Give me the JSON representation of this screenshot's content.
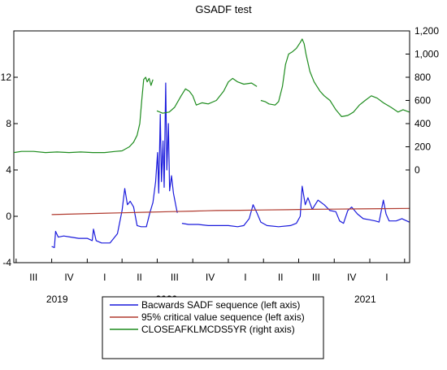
{
  "chart_data": {
    "type": "line",
    "title": "GSADF test",
    "xlabel": "",
    "x_range": [
      "2018-06-25",
      "2021-04-14"
    ],
    "left_axis": {
      "ticks": [
        "-4",
        "0",
        "4",
        "8",
        "12"
      ],
      "ylim": [
        -4,
        16
      ]
    },
    "right_axis": {
      "ticks": [
        "0",
        "200",
        "400",
        "600",
        "800",
        "1,000",
        "1,200"
      ],
      "ylim": [
        -800,
        1200
      ]
    },
    "x_quarter_labels": [
      {
        "label": "III",
        "date": "2018-08-15"
      },
      {
        "label": "IV",
        "date": "2018-11-15"
      },
      {
        "label": "I",
        "date": "2019-02-15"
      },
      {
        "label": "II",
        "date": "2019-05-16"
      },
      {
        "label": "III",
        "date": "2019-08-15"
      },
      {
        "label": "IV",
        "date": "2019-11-15"
      },
      {
        "label": "I",
        "date": "2020-02-14"
      },
      {
        "label": "II",
        "date": "2020-05-15"
      },
      {
        "label": "III",
        "date": "2020-08-15"
      },
      {
        "label": "IV",
        "date": "2020-11-15"
      },
      {
        "label": "I",
        "date": "2021-02-14"
      }
    ],
    "x_quarter_ticks": [
      "2018-07-01",
      "2018-10-01",
      "2019-01-01",
      "2019-04-01",
      "2019-07-01",
      "2019-10-01",
      "2020-01-01",
      "2020-04-01",
      "2020-07-01",
      "2020-10-01",
      "2021-01-01",
      "2021-04-01"
    ],
    "x_year_labels": [
      {
        "label": "2019",
        "date": "2018-10-15"
      },
      {
        "label": "2020",
        "date": "2019-07-25"
      },
      {
        "label": "2021",
        "date": "2020-12-20"
      }
    ],
    "series": [
      {
        "name": "Bacwards SADF sequence (left axis)",
        "axis": "left",
        "color": "#1a1adc",
        "points": [
          [
            "2018-10-01",
            -2.6
          ],
          [
            "2018-10-08",
            -2.7
          ],
          [
            "2018-10-11",
            -1.3
          ],
          [
            "2018-10-18",
            -1.8
          ],
          [
            "2018-11-01",
            -1.7
          ],
          [
            "2018-11-20",
            -1.8
          ],
          [
            "2018-12-10",
            -1.9
          ],
          [
            "2019-01-01",
            -1.9
          ],
          [
            "2019-01-14",
            -2.1
          ],
          [
            "2019-01-17",
            -1.1
          ],
          [
            "2019-01-24",
            -2.1
          ],
          [
            "2019-02-07",
            -2.3
          ],
          [
            "2019-03-01",
            -2.3
          ],
          [
            "2019-03-20",
            -1.5
          ],
          [
            "2019-04-01",
            0.5
          ],
          [
            "2019-04-08",
            2.4
          ],
          [
            "2019-04-15",
            1.0
          ],
          [
            "2019-04-22",
            1.3
          ],
          [
            "2019-05-01",
            0.8
          ],
          [
            "2019-05-10",
            -0.8
          ],
          [
            "2019-05-20",
            -0.9
          ],
          [
            "2019-06-03",
            -0.9
          ],
          [
            "2019-06-12",
            0.3
          ],
          [
            "2019-06-20",
            1.2
          ],
          [
            "2019-06-27",
            3.0
          ],
          [
            "2019-07-02",
            5.5
          ],
          [
            "2019-07-05",
            2.0
          ],
          [
            "2019-07-09",
            8.8
          ],
          [
            "2019-07-12",
            3.0
          ],
          [
            "2019-07-16",
            6.5
          ],
          [
            "2019-07-19",
            2.5
          ],
          [
            "2019-07-23",
            11.5
          ],
          [
            "2019-07-26",
            4.0
          ],
          [
            "2019-07-30",
            8.0
          ],
          [
            "2019-08-02",
            2.2
          ],
          [
            "2019-08-07",
            3.5
          ],
          [
            "2019-08-12",
            2.0
          ],
          [
            "2019-08-19",
            0.8
          ],
          [
            "2019-08-22",
            0.3
          ]
        ]
      },
      {
        "name": "Bacwards SADF sequence (left axis)",
        "axis": "left",
        "color": "#1a1adc",
        "points": [
          [
            "2019-09-03",
            -0.6
          ],
          [
            "2019-09-20",
            -0.7
          ],
          [
            "2019-10-15",
            -0.7
          ],
          [
            "2019-11-10",
            -0.8
          ],
          [
            "2019-12-05",
            -0.8
          ],
          [
            "2020-01-01",
            -0.8
          ],
          [
            "2020-01-25",
            -0.9
          ],
          [
            "2020-02-10",
            -0.8
          ],
          [
            "2020-02-24",
            -0.2
          ],
          [
            "2020-03-05",
            1.0
          ],
          [
            "2020-03-15",
            0.3
          ],
          [
            "2020-03-25",
            -0.5
          ],
          [
            "2020-04-10",
            -0.8
          ],
          [
            "2020-05-10",
            -0.9
          ],
          [
            "2020-06-10",
            -0.8
          ],
          [
            "2020-06-25",
            -0.6
          ],
          [
            "2020-07-05",
            0.0
          ],
          [
            "2020-07-10",
            2.6
          ],
          [
            "2020-07-18",
            1.0
          ],
          [
            "2020-07-25",
            1.6
          ],
          [
            "2020-08-05",
            0.6
          ],
          [
            "2020-08-20",
            1.4
          ],
          [
            "2020-09-05",
            1.0
          ],
          [
            "2020-09-20",
            0.5
          ],
          [
            "2020-10-05",
            0.4
          ],
          [
            "2020-10-15",
            -0.4
          ],
          [
            "2020-10-25",
            -0.6
          ],
          [
            "2020-11-05",
            0.5
          ],
          [
            "2020-11-15",
            0.8
          ],
          [
            "2020-11-30",
            0.2
          ],
          [
            "2020-12-15",
            -0.2
          ],
          [
            "2021-01-01",
            -0.3
          ],
          [
            "2021-01-15",
            -0.4
          ],
          [
            "2021-01-25",
            -0.5
          ],
          [
            "2021-02-05",
            1.4
          ],
          [
            "2021-02-12",
            0.2
          ],
          [
            "2021-02-20",
            -0.4
          ],
          [
            "2021-03-10",
            -0.4
          ],
          [
            "2021-03-25",
            -0.2
          ],
          [
            "2021-04-13",
            -0.5
          ]
        ]
      },
      {
        "name": "95% critical value sequence (left axis)",
        "axis": "left",
        "color": "#b03a2e",
        "points": [
          [
            "2018-10-01",
            0.15
          ],
          [
            "2018-12-01",
            0.2
          ],
          [
            "2019-02-01",
            0.25
          ],
          [
            "2019-04-01",
            0.3
          ],
          [
            "2019-06-01",
            0.35
          ],
          [
            "2019-08-01",
            0.4
          ],
          [
            "2019-10-01",
            0.45
          ],
          [
            "2019-12-01",
            0.5
          ],
          [
            "2020-02-01",
            0.52
          ],
          [
            "2020-04-01",
            0.55
          ],
          [
            "2020-06-01",
            0.57
          ],
          [
            "2020-08-01",
            0.6
          ],
          [
            "2020-10-01",
            0.62
          ],
          [
            "2020-12-01",
            0.64
          ],
          [
            "2021-02-01",
            0.66
          ],
          [
            "2021-04-13",
            0.68
          ]
        ]
      },
      {
        "name": "CLOSEAFKLMCDS5YR (right axis)",
        "axis": "right",
        "color": "#1e8c1e",
        "points": [
          [
            "2018-06-25",
            150
          ],
          [
            "2018-07-15",
            160
          ],
          [
            "2018-08-15",
            160
          ],
          [
            "2018-09-15",
            150
          ],
          [
            "2018-10-15",
            155
          ],
          [
            "2018-11-15",
            150
          ],
          [
            "2018-12-15",
            155
          ],
          [
            "2019-01-15",
            150
          ],
          [
            "2019-02-15",
            150
          ],
          [
            "2019-03-15",
            160
          ],
          [
            "2019-04-01",
            165
          ],
          [
            "2019-04-20",
            200
          ],
          [
            "2019-05-01",
            240
          ],
          [
            "2019-05-10",
            300
          ],
          [
            "2019-05-17",
            400
          ],
          [
            "2019-05-22",
            600
          ],
          [
            "2019-05-27",
            780
          ],
          [
            "2019-06-01",
            800
          ],
          [
            "2019-06-05",
            760
          ],
          [
            "2019-06-10",
            790
          ],
          [
            "2019-06-15",
            730
          ],
          [
            "2019-06-20",
            780
          ]
        ]
      },
      {
        "name": "CLOSEAFKLMCDS5YR (right axis)",
        "axis": "right",
        "color": "#1e8c1e",
        "points": [
          [
            "2019-06-30",
            510
          ],
          [
            "2019-07-15",
            490
          ],
          [
            "2019-08-01",
            500
          ],
          [
            "2019-08-15",
            540
          ],
          [
            "2019-09-01",
            640
          ],
          [
            "2019-09-12",
            700
          ],
          [
            "2019-09-22",
            680
          ],
          [
            "2019-10-01",
            640
          ],
          [
            "2019-10-10",
            560
          ],
          [
            "2019-10-25",
            580
          ],
          [
            "2019-11-10",
            570
          ],
          [
            "2019-12-01",
            600
          ],
          [
            "2019-12-20",
            680
          ],
          [
            "2020-01-01",
            760
          ],
          [
            "2020-01-12",
            790
          ],
          [
            "2020-01-25",
            760
          ],
          [
            "2020-02-10",
            740
          ],
          [
            "2020-03-01",
            750
          ],
          [
            "2020-03-15",
            720
          ]
        ]
      },
      {
        "name": "CLOSEAFKLMCDS5YR (right axis)",
        "axis": "right",
        "color": "#1e8c1e",
        "points": [
          [
            "2020-03-25",
            600
          ],
          [
            "2020-04-05",
            590
          ],
          [
            "2020-04-15",
            570
          ],
          [
            "2020-05-01",
            560
          ],
          [
            "2020-05-10",
            590
          ],
          [
            "2020-05-20",
            720
          ],
          [
            "2020-05-28",
            910
          ],
          [
            "2020-06-05",
            1000
          ],
          [
            "2020-06-15",
            1020
          ],
          [
            "2020-06-25",
            1050
          ],
          [
            "2020-07-05",
            1100
          ],
          [
            "2020-07-10",
            1130
          ],
          [
            "2020-07-15",
            1090
          ],
          [
            "2020-07-20",
            1000
          ],
          [
            "2020-07-30",
            850
          ],
          [
            "2020-08-10",
            760
          ],
          [
            "2020-08-25",
            680
          ],
          [
            "2020-09-05",
            640
          ],
          [
            "2020-09-20",
            600
          ],
          [
            "2020-10-05",
            520
          ],
          [
            "2020-10-20",
            460
          ],
          [
            "2020-11-05",
            470
          ],
          [
            "2020-11-20",
            500
          ],
          [
            "2020-12-05",
            560
          ],
          [
            "2020-12-20",
            600
          ],
          [
            "2021-01-05",
            640
          ],
          [
            "2021-01-20",
            620
          ],
          [
            "2021-02-05",
            580
          ],
          [
            "2021-02-25",
            540
          ],
          [
            "2021-03-15",
            500
          ],
          [
            "2021-03-28",
            520
          ],
          [
            "2021-04-13",
            500
          ]
        ]
      }
    ],
    "legend": {
      "placement": "bottom",
      "entries": [
        {
          "label": "Bacwards SADF sequence (left axis)",
          "color": "#1a1adc"
        },
        {
          "label": "95% critical value sequence (left axis)",
          "color": "#b03a2e"
        },
        {
          "label": "CLOSEAFKLMCDS5YR (right axis)",
          "color": "#1e8c1e"
        }
      ]
    }
  }
}
